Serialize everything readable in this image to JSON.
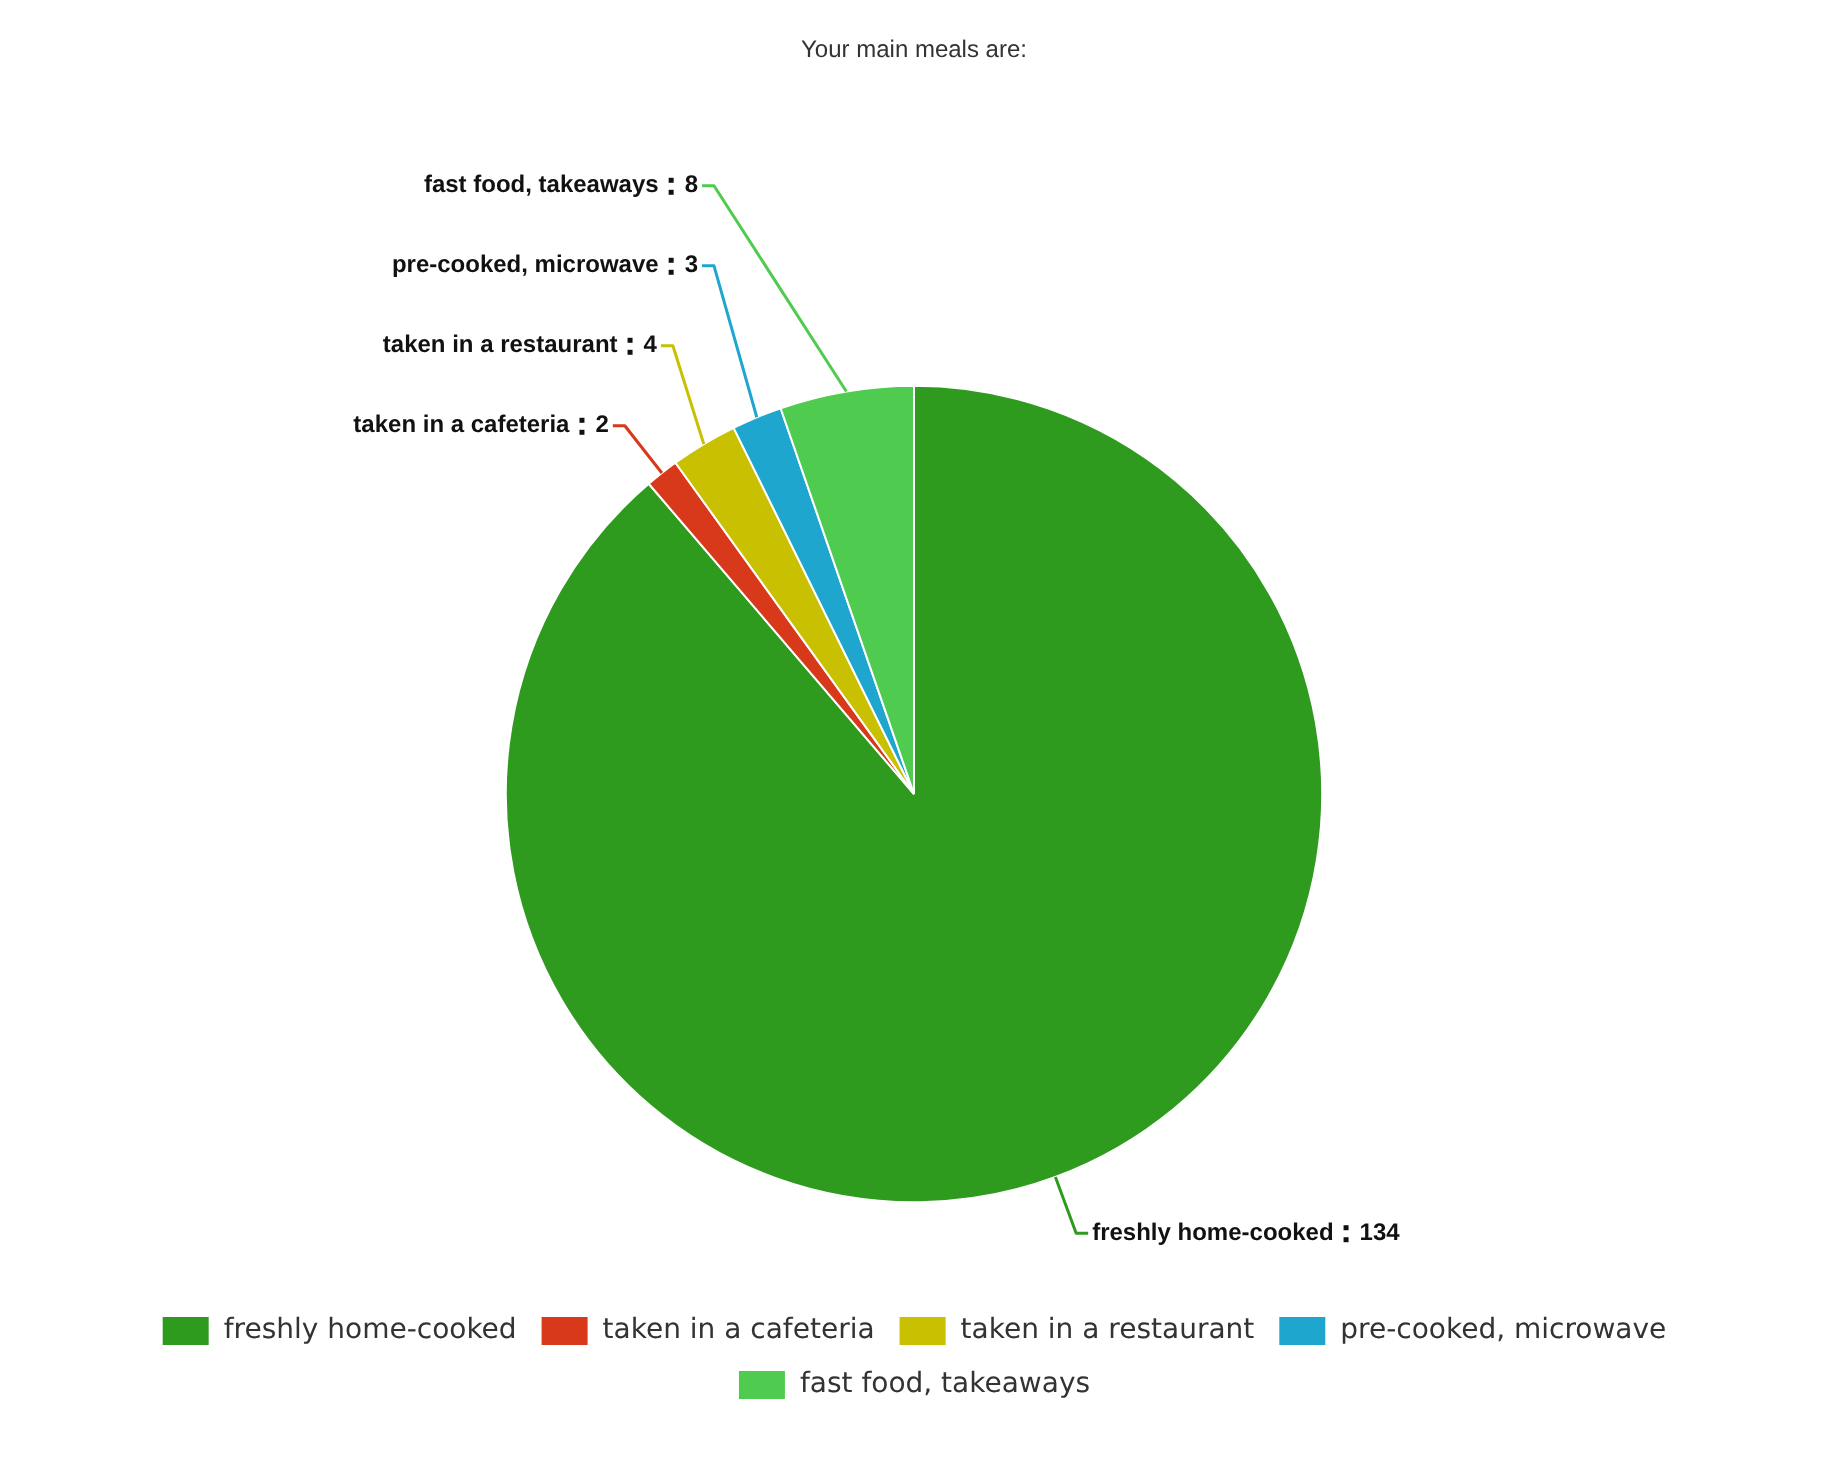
{
  "chart_data": {
    "type": "pie",
    "title": "Your main meals are:",
    "categories": [
      "freshly home-cooked",
      "taken in a cafeteria",
      "taken in a restaurant",
      "pre-cooked, microwave",
      "fast food, takeaways"
    ],
    "values": [
      134,
      2,
      4,
      3,
      8
    ],
    "colors": [
      "#2e9a1e",
      "#d8391a",
      "#c8c000",
      "#1fa6cf",
      "#4fcc4f"
    ],
    "data_labels": true,
    "legend": "bottom"
  }
}
